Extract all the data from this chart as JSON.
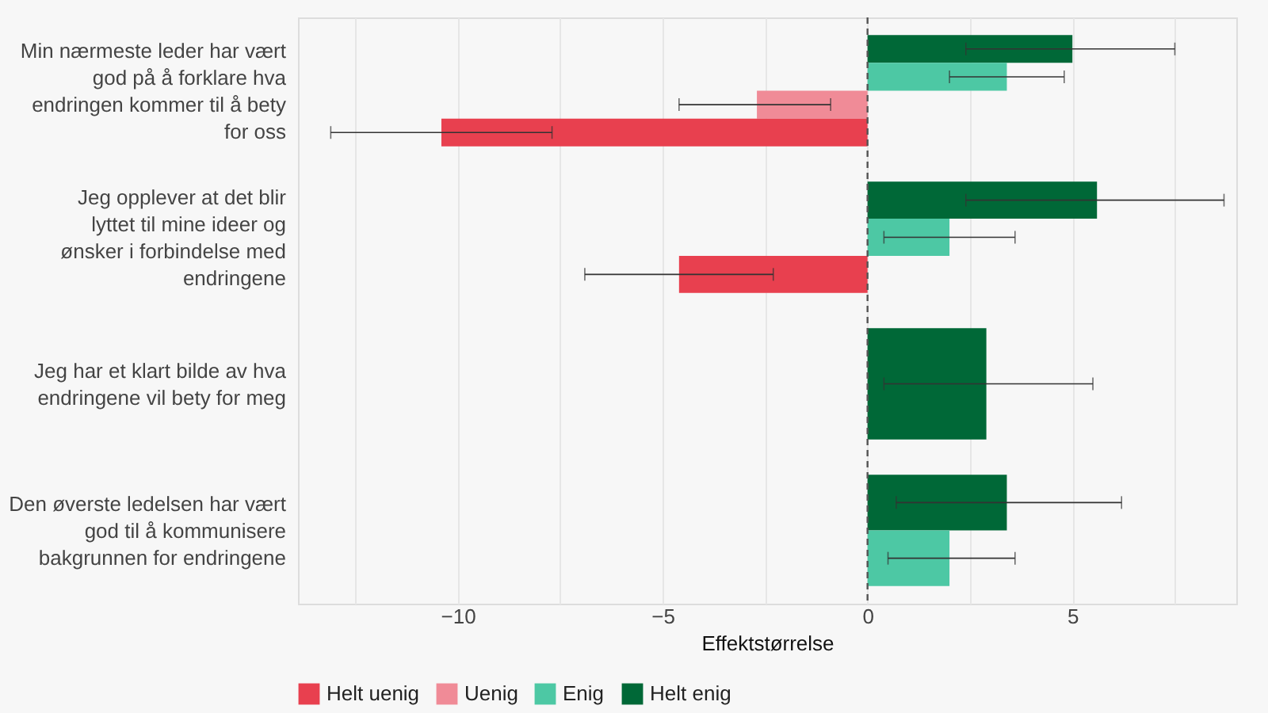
{
  "chart_data": {
    "type": "bar",
    "orientation": "horizontal",
    "xlabel": "Effektstørrelse",
    "categories": [
      "Min nærmeste leder har vært god på å forklare hva endringen kommer til å bety for oss",
      "Jeg opplever at det blir lyttet til mine ideer og ønsker i forbindelse med endringene",
      "Jeg har et klart bilde av hva endringene vil bety for meg",
      "Den øverste ledelsen har vært god til å kommunisere bakgrunnen for endringene"
    ],
    "series": [
      {
        "name": "Helt uenig",
        "color": "#e8404f",
        "values": [
          -10.4,
          -4.6,
          null,
          null
        ],
        "errors": [
          [
            -13.1,
            -7.7
          ],
          [
            -6.9,
            -2.3
          ],
          null,
          null
        ]
      },
      {
        "name": "Uenig",
        "color": "#f08b97",
        "values": [
          -2.7,
          null,
          null,
          null
        ],
        "errors": [
          [
            -4.6,
            -0.9
          ],
          null,
          null,
          null
        ]
      },
      {
        "name": "Enig",
        "color": "#4dc8a4",
        "values": [
          3.4,
          2.0,
          null,
          2.0
        ],
        "errors": [
          [
            2.0,
            4.8
          ],
          [
            0.4,
            3.6
          ],
          null,
          [
            0.5,
            3.6
          ]
        ]
      },
      {
        "name": "Helt enig",
        "color": "#006837",
        "values": [
          5.0,
          5.6,
          2.9,
          3.4
        ],
        "errors": [
          [
            2.4,
            7.5
          ],
          [
            2.4,
            8.7
          ],
          [
            0.4,
            5.5
          ],
          [
            0.7,
            6.2
          ]
        ]
      }
    ],
    "xlim": [
      -13.9,
      9.0
    ],
    "xticks": [
      {
        "value": -12.5,
        "label": null
      },
      -10,
      {
        "value": -7.5,
        "label": null
      },
      -5,
      {
        "value": -2.5,
        "label": null
      },
      0,
      {
        "value": 2.5,
        "label": null
      },
      5,
      {
        "value": 7.5,
        "label": null
      }
    ],
    "ref_lines": [
      {
        "axis": "x",
        "value": 0,
        "color": "#555555",
        "line_style": "dashed"
      }
    ],
    "grid": "x",
    "legend": "bottom"
  }
}
